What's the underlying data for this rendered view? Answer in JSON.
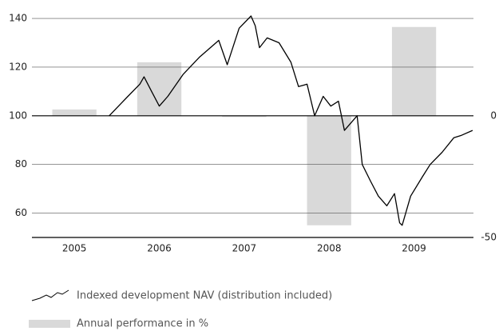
{
  "chart_data": {
    "type": "combo",
    "categories": [
      "2005",
      "2006",
      "2007",
      "2008",
      "2009"
    ],
    "xlim": [
      2005,
      2010.2
    ],
    "ylim": [
      50,
      142
    ],
    "yticks": [
      60,
      80,
      100,
      120,
      140
    ],
    "y2lim": [
      -50,
      42
    ],
    "y2ticks": [
      -50,
      0
    ],
    "grid": true,
    "series": [
      {
        "name": "Indexed development NAV (distribution included)",
        "type": "line",
        "color": "#000000",
        "x": [
          2005.91,
          2006.13,
          2006.27,
          2006.32,
          2006.41,
          2006.5,
          2006.6,
          2006.78,
          2006.97,
          2007.2,
          2007.3,
          2007.44,
          2007.58,
          2007.63,
          2007.68,
          2007.77,
          2007.91,
          2008.05,
          2008.14,
          2008.24,
          2008.33,
          2008.43,
          2008.52,
          2008.61,
          2008.68,
          2008.83,
          2008.89,
          2008.99,
          2009.08,
          2009.18,
          2009.27,
          2009.33,
          2009.36,
          2009.46,
          2009.6,
          2009.69,
          2009.83,
          2009.97,
          2010.06,
          2010.19
        ],
        "values": [
          100,
          108,
          113,
          116,
          110,
          104,
          108,
          117,
          124,
          131,
          121,
          136,
          141,
          137,
          128,
          132,
          130,
          122,
          112,
          113,
          100,
          108,
          104,
          106,
          94,
          100,
          80,
          73,
          67,
          63,
          68,
          56,
          55,
          67,
          75,
          80,
          85,
          91,
          92,
          94
        ]
      },
      {
        "name": "Annual performance in %",
        "type": "bar",
        "axis": "y2",
        "color": "#d9d9d9",
        "values": [
          2.6,
          22,
          -0.5,
          -45,
          36.5
        ]
      }
    ]
  }
}
